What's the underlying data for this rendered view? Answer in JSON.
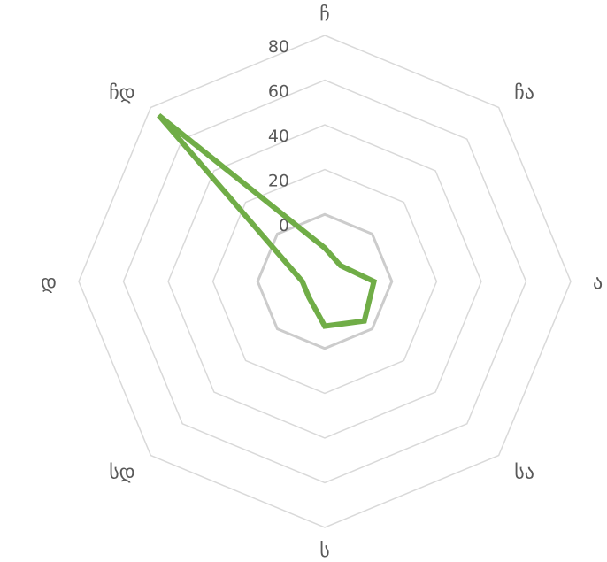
{
  "chart_data": {
    "type": "radar",
    "categories": [
      "ჩ",
      "ჩა",
      "ა",
      "სა",
      "ს",
      "სდ",
      "დ",
      "ჩდ"
    ],
    "series": [
      {
        "values": [
          -15,
          -20,
          -8,
          -5,
          -10,
          -20,
          -20,
          75
        ]
      }
    ],
    "r_ticks": [
      0,
      20,
      40,
      60,
      80
    ],
    "r_tick_labels": [
      "0",
      "20",
      "40",
      "60",
      "80"
    ],
    "rlim": [
      -30,
      80
    ],
    "grid": true,
    "legend": "none",
    "colors": {
      "series": "#70ad47",
      "grid": "#d9d9d9",
      "zero_ring": "#cccccc",
      "text": "#595959"
    }
  }
}
